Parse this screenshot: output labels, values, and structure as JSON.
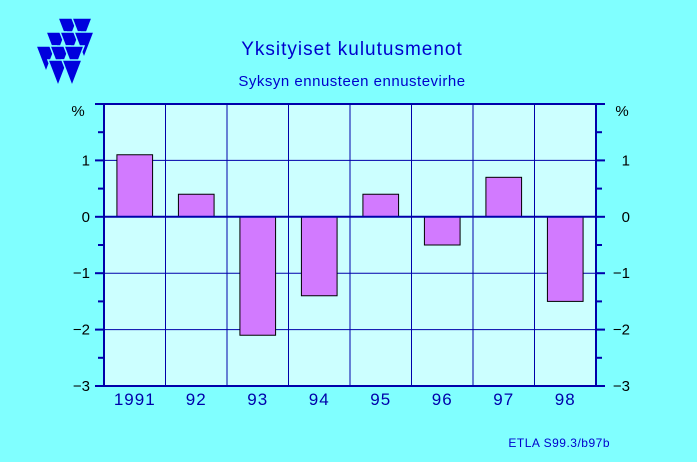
{
  "header": {
    "title": "Yksityiset  kulutusmenot",
    "subtitle": "Syksyn ennusteen ennustevirhe"
  },
  "footer": {
    "source": "ETLA S99.3/b97b"
  },
  "logo": {
    "icon": "etla-triangles-logo",
    "color": "#0000dd"
  },
  "colors": {
    "background": "#80ffff",
    "plot_background": "#ccffff",
    "bar_fill": "#d27aff",
    "axis": "#0000aa"
  },
  "chart_data": {
    "type": "bar",
    "title": "Yksityiset  kulutusmenot",
    "subtitle": "Syksyn ennusteen ennustevirhe",
    "categories": [
      "1991",
      "92",
      "93",
      "94",
      "95",
      "96",
      "97",
      "98"
    ],
    "values": [
      1.1,
      0.4,
      -2.1,
      -1.4,
      0.4,
      -0.5,
      0.7,
      -1.5
    ],
    "unit_left": "%",
    "unit_right": "%",
    "ylim": [
      -3,
      2
    ],
    "yticks": [
      1,
      0,
      -1,
      -2,
      -3
    ],
    "ytick_labels": [
      "1",
      "0",
      "−1",
      "−2",
      "−3"
    ],
    "grid": true
  }
}
